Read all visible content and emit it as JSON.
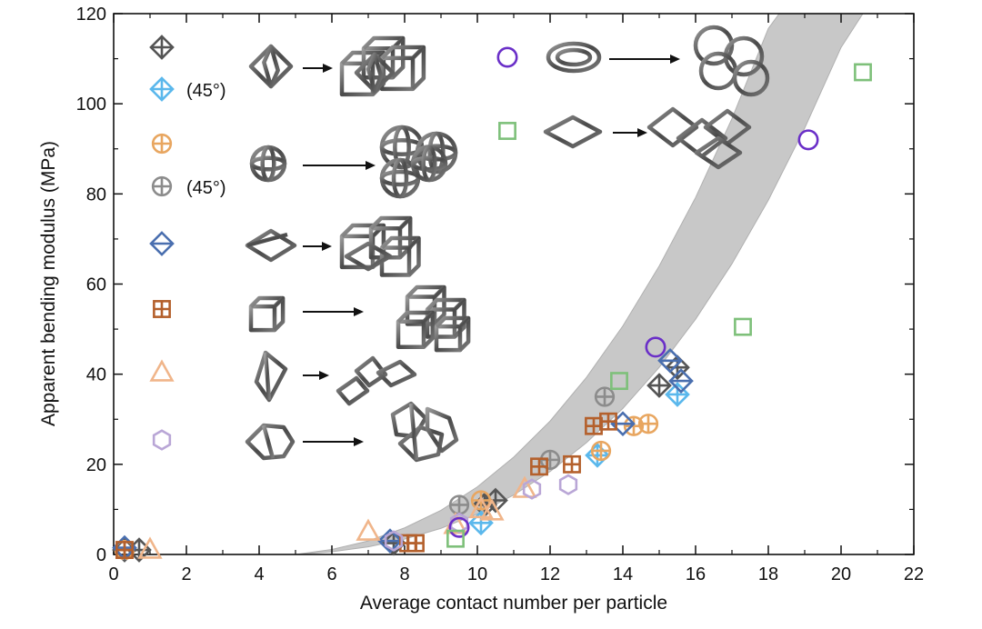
{
  "chart_data": {
    "type": "scatter",
    "xlabel": "Average contact number per particle",
    "ylabel": "Apparent bending modulus (MPa)",
    "xlim": [
      0,
      22
    ],
    "ylim": [
      0,
      120
    ],
    "xticks": [
      0,
      2,
      4,
      6,
      8,
      10,
      12,
      14,
      16,
      18,
      20,
      22
    ],
    "yticks": [
      0,
      20,
      40,
      60,
      80,
      100,
      120
    ],
    "grid": false,
    "legend_position": "top-left (inside plot), with particle shape illustrations",
    "band": {
      "description": "shaded guide band",
      "color": "#c8c8c8",
      "lower": [
        [
          5.0,
          0
        ],
        [
          6,
          0.6
        ],
        [
          7,
          1.7
        ],
        [
          8,
          3.4
        ],
        [
          9,
          5.8
        ],
        [
          10,
          9
        ],
        [
          11,
          13.2
        ],
        [
          12,
          18.4
        ],
        [
          13,
          24.8
        ],
        [
          14,
          32.4
        ],
        [
          15,
          41.5
        ],
        [
          16,
          52.2
        ],
        [
          17,
          64.5
        ],
        [
          18,
          78.6
        ],
        [
          19,
          94.6
        ],
        [
          20,
          112.5
        ],
        [
          20.6,
          120
        ]
      ],
      "upper": [
        [
          5.0,
          0
        ],
        [
          6,
          1.1
        ],
        [
          7,
          3
        ],
        [
          8,
          5.9
        ],
        [
          9,
          9.8
        ],
        [
          10,
          15
        ],
        [
          11,
          21.6
        ],
        [
          12,
          29.6
        ],
        [
          13,
          39.3
        ],
        [
          14,
          50.7
        ],
        [
          15,
          64
        ],
        [
          16,
          79.2
        ],
        [
          17,
          96.7
        ],
        [
          18,
          116.7
        ],
        [
          18.3,
          120
        ]
      ]
    },
    "series": [
      {
        "marker": "diamond-plus",
        "color": "#555555",
        "points": [
          [
            0.3,
            1.0
          ],
          [
            0.7,
            1.0
          ],
          [
            7.7,
            2.5
          ],
          [
            10.2,
            11.0
          ],
          [
            10.5,
            12.0
          ],
          [
            15.0,
            37.5
          ],
          [
            15.5,
            41.5
          ]
        ]
      },
      {
        "marker": "diamond-plus",
        "color": "#5bb8ec",
        "note": "(45°)",
        "points": [
          [
            10.1,
            7.0
          ],
          [
            13.3,
            22.0
          ],
          [
            15.5,
            35.5
          ]
        ]
      },
      {
        "marker": "circle-plus",
        "color": "#e8a660",
        "points": [
          [
            0.3,
            1.0
          ],
          [
            10.1,
            12.0
          ],
          [
            13.4,
            23.0
          ],
          [
            14.3,
            28.5
          ],
          [
            14.7,
            29.0
          ]
        ]
      },
      {
        "marker": "circle-plus",
        "color": "#8c8c8c",
        "note": "(45°)",
        "points": [
          [
            9.5,
            11.0
          ],
          [
            12.0,
            21.0
          ],
          [
            13.5,
            35.0
          ]
        ]
      },
      {
        "marker": "diamond-hline",
        "color": "#4a6faf",
        "points": [
          [
            0.3,
            1.5
          ],
          [
            7.6,
            3.0
          ],
          [
            14.0,
            29.0
          ],
          [
            15.3,
            43.0
          ],
          [
            15.6,
            38.5
          ]
        ]
      },
      {
        "marker": "square-plus",
        "color": "#b4602c",
        "points": [
          [
            0.3,
            1.0
          ],
          [
            8.1,
            2.5
          ],
          [
            8.3,
            2.5
          ],
          [
            11.7,
            19.5
          ],
          [
            12.6,
            20.0
          ],
          [
            13.2,
            28.5
          ],
          [
            13.6,
            29.5
          ]
        ]
      },
      {
        "marker": "triangle",
        "color": "#f0b58a",
        "points": [
          [
            1.0,
            1.0
          ],
          [
            7.0,
            5.0
          ],
          [
            9.4,
            6.5
          ],
          [
            10.1,
            10.0
          ],
          [
            10.4,
            9.5
          ],
          [
            11.3,
            14.5
          ]
        ]
      },
      {
        "marker": "hexagon",
        "color": "#b9a6d6",
        "points": [
          [
            7.7,
            3.0
          ],
          [
            9.5,
            7.0
          ],
          [
            11.5,
            14.5
          ],
          [
            12.5,
            15.5
          ]
        ]
      },
      {
        "marker": "circle",
        "color": "#6a2fc8",
        "points": [
          [
            9.5,
            6.0
          ],
          [
            14.9,
            46.0
          ],
          [
            19.1,
            92.0
          ]
        ]
      },
      {
        "marker": "square",
        "color": "#7ec07a",
        "points": [
          [
            9.4,
            3.5
          ],
          [
            13.9,
            38.5
          ],
          [
            17.3,
            50.5
          ],
          [
            20.6,
            107.0
          ]
        ]
      }
    ],
    "legend": [
      {
        "marker": "diamond-plus",
        "color": "#555555",
        "label": ""
      },
      {
        "marker": "diamond-plus",
        "color": "#5bb8ec",
        "label": "(45°)"
      },
      {
        "marker": "circle-plus",
        "color": "#e8a660",
        "label": ""
      },
      {
        "marker": "circle-plus",
        "color": "#8c8c8c",
        "label": "(45°)"
      },
      {
        "marker": "diamond-hline",
        "color": "#4a6faf",
        "label": ""
      },
      {
        "marker": "square-plus",
        "color": "#b4602c",
        "label": ""
      },
      {
        "marker": "triangle",
        "color": "#f0b58a",
        "label": ""
      },
      {
        "marker": "hexagon",
        "color": "#b9a6d6",
        "label": ""
      },
      {
        "marker": "circle",
        "color": "#6a2fc8",
        "label": ""
      },
      {
        "marker": "square",
        "color": "#7ec07a",
        "label": ""
      }
    ],
    "illustrations": [
      {
        "particle": "octahedron-frame",
        "cluster": "octahedron-cluster"
      },
      {
        "particle": "sphere-frame",
        "cluster": "sphere-cluster"
      },
      {
        "particle": "bipyramid-frame",
        "cluster": "bipyramid-cluster"
      },
      {
        "particle": "cube-frame",
        "cluster": "cube-cluster"
      },
      {
        "particle": "rhombus-frame",
        "cluster": "rhombus-cluster"
      },
      {
        "particle": "hexagonal-frame",
        "cluster": "hexagonal-cluster"
      },
      {
        "particle": "torus",
        "cluster": "torus-cluster"
      },
      {
        "particle": "flat-rhombus-frame",
        "cluster": "flat-rhombus-cluster"
      }
    ]
  }
}
